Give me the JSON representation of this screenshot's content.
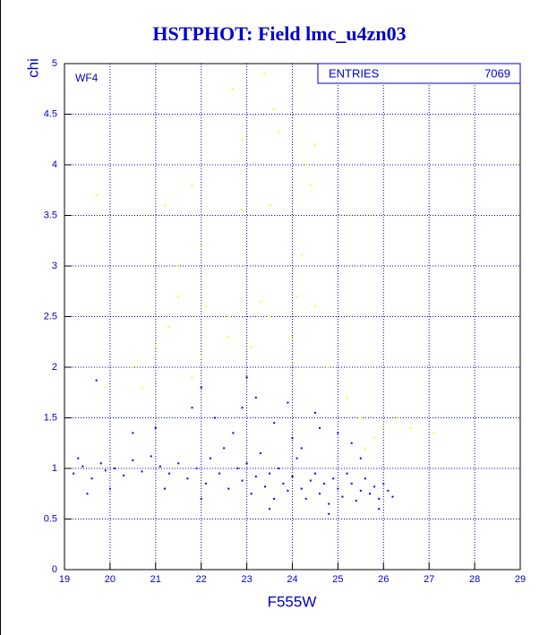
{
  "chart_data": {
    "type": "scatter",
    "title": "HSTPHOT: Field lmc_u4zn03",
    "x_label": "F555W",
    "y_label": "chi",
    "panel_label": "WF4",
    "stats_label": "ENTRIES",
    "stats_value": 7069,
    "xlim": [
      19,
      29
    ],
    "ylim": [
      0,
      5
    ],
    "xticks": [
      19,
      20,
      21,
      22,
      23,
      24,
      25,
      26,
      27,
      28,
      29
    ],
    "yticks": [
      0,
      0.5,
      1,
      1.5,
      2,
      2.5,
      3,
      3.5,
      4,
      4.5,
      5
    ],
    "grid": true,
    "series": [
      {
        "color": "#0000ff",
        "x": [
          19.2,
          19.4,
          19.6,
          19.8,
          19.3,
          19.9,
          20.1,
          20.3,
          20.5,
          20.7,
          20.9,
          21.1,
          21.3,
          21.5,
          21.7,
          21.9,
          22.1,
          22.2,
          22.4,
          22.5,
          22.6,
          22.8,
          22.9,
          23.0,
          23.1,
          23.2,
          23.3,
          23.4,
          23.5,
          23.6,
          23.7,
          23.8,
          23.9,
          24.0,
          24.1,
          24.2,
          24.3,
          24.4,
          24.5,
          24.6,
          24.7,
          24.8,
          24.9,
          25.0,
          25.1,
          25.2,
          25.3,
          25.4,
          25.5,
          25.6,
          25.7,
          25.8,
          25.9,
          26.0,
          26.1,
          26.2,
          21.0,
          21.8,
          22.3,
          22.7,
          23.2,
          23.6,
          24.0,
          24.5,
          25.0,
          19.7,
          20.5,
          22.0,
          23.0,
          24.2,
          25.5,
          22.0,
          23.5,
          24.8,
          25.9,
          21.2,
          20.0,
          19.5,
          24.6,
          25.3,
          23.9,
          22.9
        ],
        "y": [
          0.95,
          1.02,
          0.9,
          1.05,
          1.1,
          0.98,
          1.0,
          0.93,
          1.08,
          0.97,
          1.12,
          1.02,
          0.95,
          1.05,
          0.9,
          1.0,
          0.85,
          1.1,
          0.95,
          1.2,
          0.8,
          1.0,
          0.88,
          1.05,
          0.75,
          0.92,
          1.15,
          0.82,
          0.95,
          0.7,
          1.0,
          0.85,
          0.78,
          0.92,
          1.1,
          0.8,
          0.7,
          0.88,
          0.95,
          0.75,
          0.85,
          0.65,
          0.9,
          0.8,
          0.72,
          0.95,
          0.85,
          0.68,
          0.78,
          0.9,
          0.75,
          0.82,
          0.7,
          0.85,
          0.78,
          0.72,
          1.4,
          1.6,
          1.5,
          1.35,
          1.7,
          1.45,
          1.3,
          1.55,
          1.35,
          1.87,
          1.35,
          1.8,
          1.9,
          1.2,
          1.1,
          0.7,
          0.6,
          0.55,
          0.6,
          0.8,
          0.8,
          0.75,
          1.4,
          1.25,
          1.65,
          1.6
        ]
      },
      {
        "color": "#ffff00",
        "x": [
          19.7,
          21.2,
          21.8,
          22.7,
          22.9,
          23.4,
          23.6,
          23.7,
          24.3,
          24.4,
          24.5,
          22.9,
          23.5,
          22.0,
          21.5,
          21.5,
          22.1,
          22.6,
          23.3,
          24.1,
          24.5,
          24.2,
          20.5,
          20.7,
          21.0,
          21.3,
          22.0,
          22.6,
          23.1,
          23.5,
          24.0,
          24.8,
          25.2,
          25.5,
          25.8,
          26.0,
          26.3,
          26.6,
          27.1,
          19.9,
          21.8,
          25.6
        ],
        "y": [
          3.7,
          3.6,
          3.8,
          4.75,
          4.25,
          4.9,
          4.55,
          4.33,
          4.0,
          3.8,
          4.2,
          3.55,
          3.6,
          3.2,
          3.0,
          2.7,
          2.6,
          2.5,
          2.65,
          2.7,
          2.6,
          3.1,
          2.0,
          1.8,
          2.2,
          2.4,
          2.1,
          2.3,
          2.2,
          2.5,
          2.3,
          2.0,
          1.7,
          1.5,
          1.3,
          1.4,
          1.5,
          1.4,
          1.35,
          1.8,
          1.9,
          1.2
        ]
      }
    ]
  }
}
